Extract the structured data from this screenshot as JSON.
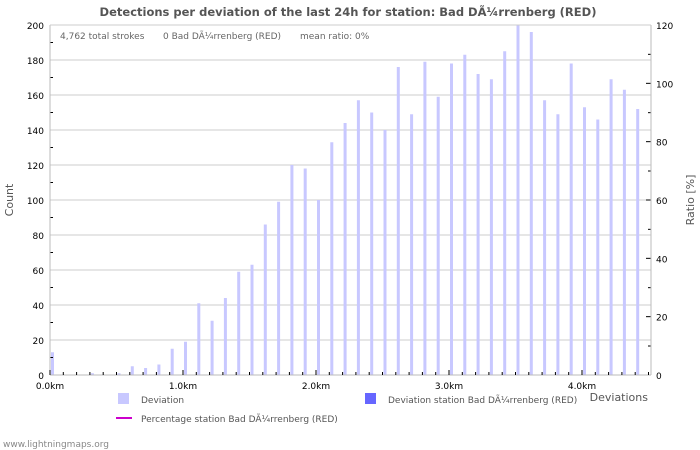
{
  "chart_data": {
    "type": "bar",
    "title": "Detections per deviation of the last 24h for station: Bad DÃ¼rrenberg (RED)",
    "info": {
      "total_strokes": "4,762 total strokes",
      "station_strokes": "0 Bad DÃ¼rrenberg (RED)",
      "mean_ratio": "mean ratio: 0%"
    },
    "xlabel": "Deviations",
    "ylabel": "Count",
    "y2label": "Ratio [%]",
    "ylim": [
      0,
      200
    ],
    "y2lim": [
      0,
      120
    ],
    "xlim_km": [
      0,
      4.5
    ],
    "bin_km": 0.1,
    "x_tick_labels": [
      "0.0km",
      "1.0km",
      "2.0km",
      "3.0km",
      "4.0km"
    ],
    "y_tick_labels": [
      "0",
      "20",
      "40",
      "60",
      "80",
      "100",
      "120",
      "140",
      "160",
      "180",
      "200"
    ],
    "y2_tick_labels": [
      "0",
      "20",
      "40",
      "60",
      "80",
      "100",
      "120"
    ],
    "series": [
      {
        "name": "Deviation",
        "color": "#c8c8ff",
        "values": [
          13,
          0,
          0,
          1,
          0,
          1,
          5,
          4,
          6,
          15,
          19,
          41,
          31,
          44,
          59,
          63,
          86,
          99,
          120,
          118,
          100,
          133,
          144,
          157,
          150,
          140,
          176,
          149,
          179,
          159,
          178,
          183,
          172,
          169,
          185,
          200,
          196,
          157,
          149,
          178,
          153,
          146,
          169,
          163,
          152
        ]
      },
      {
        "name": "Deviation station Bad DÃ¼rrenberg (RED)",
        "color": "#6666ff",
        "values": [
          0,
          0,
          0,
          0,
          0,
          0,
          0,
          0,
          0,
          0,
          0,
          0,
          0,
          0,
          0,
          0,
          0,
          0,
          0,
          0,
          0,
          0,
          0,
          0,
          0,
          0,
          0,
          0,
          0,
          0,
          0,
          0,
          0,
          0,
          0,
          0,
          0,
          0,
          0,
          0,
          0,
          0,
          0,
          0,
          0
        ]
      },
      {
        "name": "Percentage station Bad DÃ¼rrenberg (RED)",
        "color": "#cc00cc",
        "type": "line",
        "values": [
          0,
          0,
          0,
          0,
          0,
          0,
          0,
          0,
          0,
          0,
          0,
          0,
          0,
          0,
          0,
          0,
          0,
          0,
          0,
          0,
          0,
          0,
          0,
          0,
          0,
          0,
          0,
          0,
          0,
          0,
          0,
          0,
          0,
          0,
          0,
          0,
          0,
          0,
          0,
          0,
          0,
          0,
          0,
          0,
          0
        ]
      }
    ],
    "grid": true,
    "legend_placement": "bottom"
  },
  "footer": "www.lightningmaps.org"
}
